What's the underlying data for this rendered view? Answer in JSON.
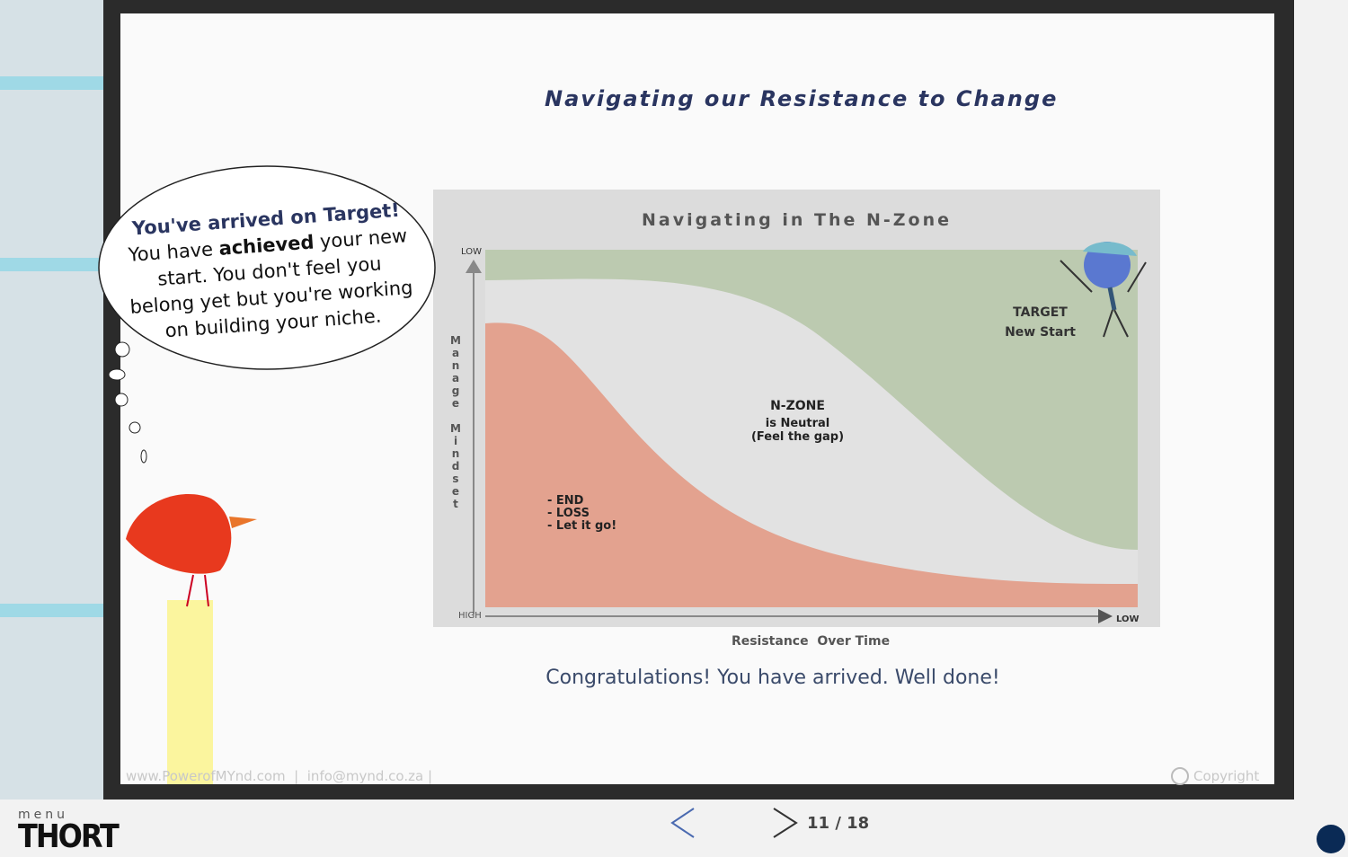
{
  "slide": {
    "title": "Navigating our Resistance to Change",
    "bubble": {
      "heading": "You've arrived on Target!",
      "body": [
        "You have ",
        "achieved",
        " your new start. You don't feel you belong yet but you're working on building your niche."
      ]
    },
    "diagram": {
      "title": "Navigating in The N-Zone",
      "y_axis": "Manage Mindset",
      "y_top": "LOW",
      "x_start": "HIGH",
      "x_end": "LOW",
      "target": [
        "TARGET",
        "New Start"
      ],
      "nzone": [
        "N-ZONE",
        "is Neutral",
        "(Feel the gap)"
      ],
      "end": [
        "- END",
        "- LOSS",
        "- Let it go!"
      ],
      "x_axis": "Resistance  Over Time"
    },
    "message": "Congratulations! You have arrived. Well done!",
    "footer": {
      "site": "www.PowerofMYnd.com",
      "email": "info@mynd.co.za",
      "copyright": "Copyright"
    }
  },
  "nav": {
    "page": "11 / 18"
  },
  "menu": {
    "label": "menu",
    "brand": "THORT"
  }
}
